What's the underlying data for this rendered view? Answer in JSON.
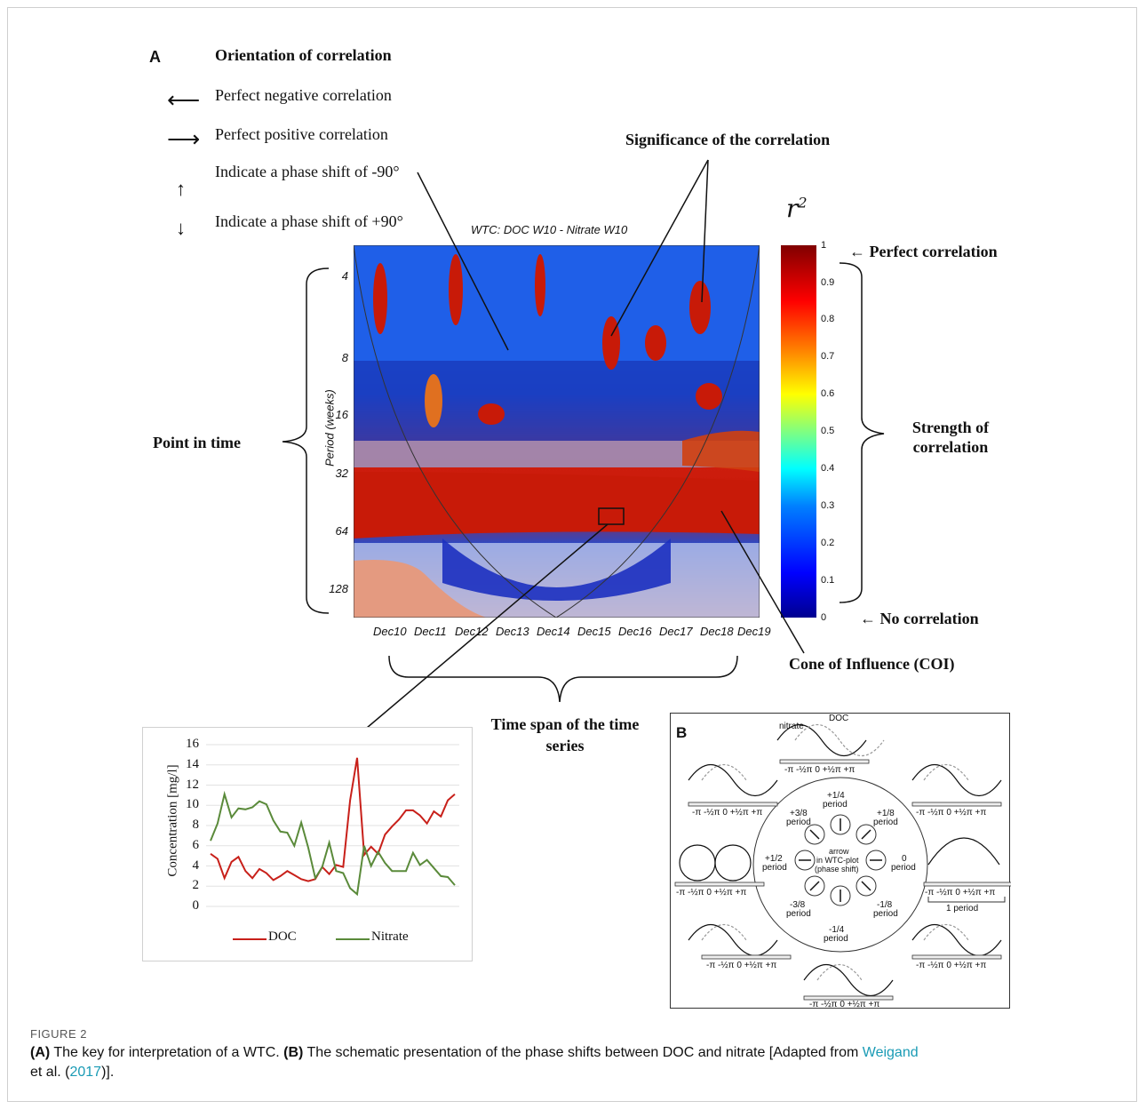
{
  "panel_a": {
    "label": "A",
    "orientation_title": "Orientation of correlation",
    "legend": [
      {
        "arrow": "⟵",
        "text": "Perfect negative correlation"
      },
      {
        "arrow": "⟶",
        "text": "Perfect positive correlation"
      },
      {
        "arrow": "↑",
        "text": "Indicate a phase shift of -90°"
      },
      {
        "arrow": "↓",
        "text": "Indicate a phase shift of +90°"
      }
    ],
    "significance_label": "Significance of the correlation",
    "wtc_title": "WTC: DOC W10 - Nitrate W10",
    "y_axis_label": "Period (weeks)",
    "y_ticks": [
      "4",
      "8",
      "16",
      "32",
      "64",
      "128"
    ],
    "x_ticks": [
      "Dec10",
      "Dec11",
      "Dec12",
      "Dec13",
      "Dec14",
      "Dec15",
      "Dec16",
      "Dec17",
      "Dec18",
      "Dec19"
    ],
    "point_in_time": "Point in time",
    "r2_label": "r",
    "r2_sup": "2",
    "colorbar_ticks": [
      "1",
      "0.9",
      "0.8",
      "0.7",
      "0.6",
      "0.5",
      "0.4",
      "0.3",
      "0.2",
      "0.1",
      "0"
    ],
    "perfect_correlation": "← Perfect correlation",
    "no_correlation": "← No correlation",
    "strength_label": "Strength of correlation",
    "coi_label": "Cone of Influence (COI)",
    "timespan_label": "Time span of the time series"
  },
  "chart_data": {
    "type": "line",
    "ylabel": "Concentration [mg/l]",
    "ylim": [
      0,
      16
    ],
    "y_ticks": [
      "16",
      "14",
      "12",
      "10",
      "8",
      "6",
      "4",
      "2",
      "0"
    ],
    "series": [
      {
        "name": "DOC",
        "color": "#c8201a",
        "values": [
          5.2,
          4.7,
          2.8,
          4.4,
          4.9,
          3.5,
          2.8,
          3.7,
          3.3,
          2.6,
          3.0,
          3.5,
          3.1,
          2.7,
          2.5,
          2.7,
          3.9,
          3.2,
          4.1,
          3.9,
          10.5,
          14.7,
          5.1,
          5.9,
          5.2,
          7.1,
          7.9,
          8.6,
          9.5,
          9.5,
          9.0,
          8.2,
          9.4,
          8.9,
          10.5,
          11.1
        ]
      },
      {
        "name": "Nitrate",
        "color": "#5a8a3a",
        "values": [
          6.5,
          8.2,
          11.1,
          8.8,
          9.7,
          9.6,
          9.8,
          10.4,
          10.1,
          8.5,
          7.4,
          7.3,
          6.0,
          8.3,
          5.8,
          2.8,
          3.9,
          6.3,
          3.5,
          3.3,
          1.8,
          1.2,
          6.0,
          4.0,
          5.4,
          4.3,
          3.5,
          3.5,
          3.5,
          5.3,
          4.1,
          4.6,
          3.8,
          3.0,
          2.9,
          2.1
        ]
      }
    ]
  },
  "panel_b": {
    "label": "B",
    "doc_label": "DOC",
    "nitrate_label": "nitrate",
    "axis_ticks": "-π  -½π  0  +½π  +π",
    "one_period": "1 period",
    "center_line1": "arrow",
    "center_line2": "in WTC-plot",
    "center_line3": "(phase shift)",
    "phases": {
      "p_1_4": "+1/4",
      "p_3_8": "+3/8",
      "p_1_8": "+1/8",
      "p_1_2": "+1/2",
      "p_0": "0",
      "m_3_8": "-3/8",
      "m_1_8": "-1/8",
      "m_1_4": "-1/4",
      "period": "period"
    }
  },
  "caption": {
    "label": "FIGURE 2",
    "a_tag": "(A)",
    "a_text": " The key for interpretation of a WTC. ",
    "b_tag": "(B)",
    "b_text": " The schematic presentation of the phase shifts between DOC and nitrate [Adapted from ",
    "author": "Weigand",
    "line2_pre": "et al. (",
    "year": "2017",
    "line2_post": ")]."
  }
}
